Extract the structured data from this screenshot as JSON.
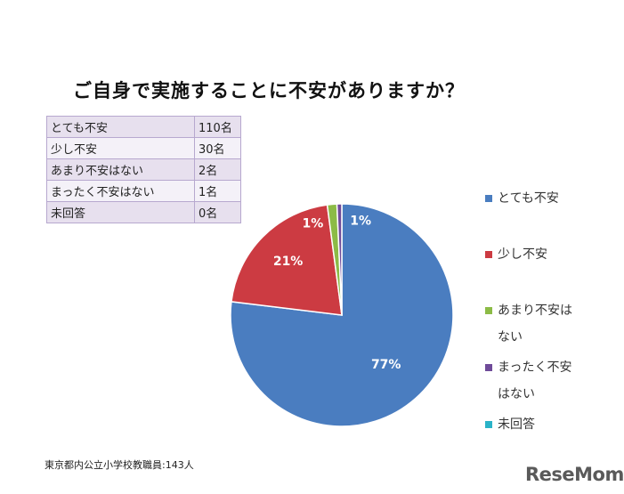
{
  "title": "ご自身で実施することに不安がありますか？",
  "table": [
    {
      "label": "とても不安",
      "count": "110名"
    },
    {
      "label": "少し不安",
      "count": "30名"
    },
    {
      "label": "あまり不安はない",
      "count": "2名"
    },
    {
      "label": "まったく不安はない",
      "count": "1名"
    },
    {
      "label": "未回答",
      "count": "0名"
    }
  ],
  "footnote": "東京都内公立小学校教職員:143人",
  "logo": "ReseMom",
  "chart_data": {
    "type": "pie",
    "title": "ご自身で実施することに不安がありますか？",
    "categories": [
      "とても不安",
      "少し不安",
      "あまり不安はない",
      "まったく不安はない",
      "未回答"
    ],
    "values": [
      110,
      30,
      2,
      1,
      0
    ],
    "data_labels": [
      "77%",
      "21%",
      "1%",
      "1%",
      ""
    ],
    "colors": [
      "#4a7dc0",
      "#cc3b42",
      "#8cbb46",
      "#6f4b99",
      "#2ab3c8"
    ],
    "legend_position": "right"
  }
}
